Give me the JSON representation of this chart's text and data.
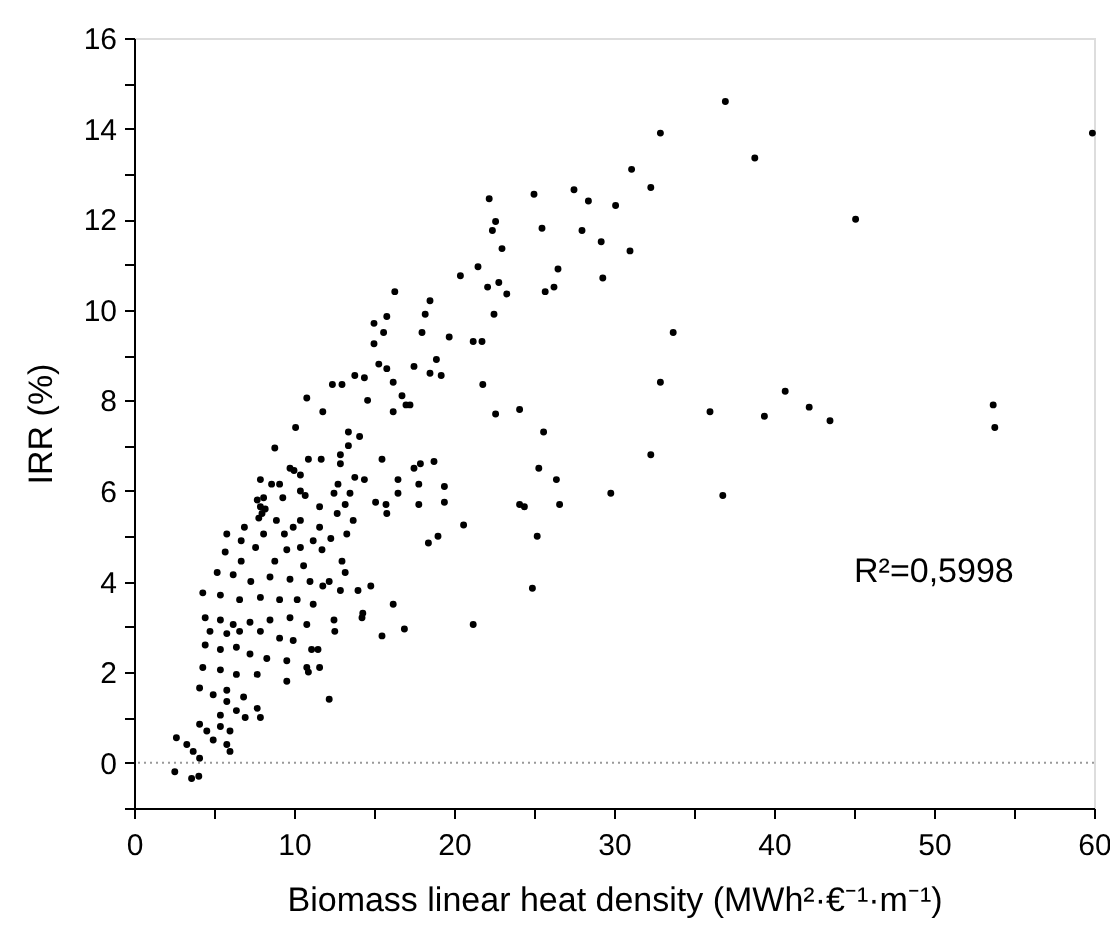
{
  "chart_data": {
    "type": "scatter",
    "xlabel": "Biomass linear heat density (MWh²·€⁻¹·m⁻¹)",
    "ylabel": "IRR (%)",
    "xlim": [
      0,
      60
    ],
    "ylim": [
      -1,
      16
    ],
    "xticks": [
      0,
      {
        "value": 5,
        "label": null
      },
      10,
      {
        "value": 15,
        "label": null
      },
      20,
      {
        "value": 25,
        "label": null
      },
      30,
      {
        "value": 35,
        "label": null
      },
      40,
      {
        "value": 45,
        "label": null
      },
      50,
      {
        "value": 55,
        "label": null
      },
      60
    ],
    "yticks": [
      {
        "value": -1,
        "label": null
      },
      0,
      {
        "value": 1,
        "label": null
      },
      2,
      {
        "value": 3,
        "label": null
      },
      4,
      {
        "value": 5,
        "label": null
      },
      6,
      {
        "value": 7,
        "label": null
      },
      8,
      {
        "value": 9,
        "label": null
      },
      10,
      {
        "value": 11,
        "label": null
      },
      12,
      {
        "value": 13,
        "label": null
      },
      14,
      {
        "value": 15,
        "label": null
      },
      16
    ],
    "grid": false,
    "legend": false,
    "marker": "circle",
    "annotations": [
      "R²=0,5998"
    ],
    "ref_lines": [
      {
        "axis": "y",
        "value": 0,
        "label": null,
        "color": "#999999",
        "line_style": "dotted"
      }
    ],
    "series": [
      {
        "color": "#000000",
        "x": [
          36.96,
          59.9,
          38.8,
          32.9,
          31.1,
          32.3,
          45.1,
          33.7,
          32.9,
          40.7,
          42.2,
          43.5,
          39.4,
          36.0,
          53.7,
          53.8,
          32.3,
          36.8,
          29.8,
          27.5,
          28.4,
          30.1,
          28.0,
          29.2,
          31.0,
          29.3,
          25.0,
          25.5,
          26.5,
          25.7,
          26.25,
          23.0,
          22.5,
          21.75,
          21.8,
          22.6,
          24.1,
          25.6,
          25.3,
          26.4,
          26.6,
          24.1,
          24.4,
          25.2,
          24.9,
          22.2,
          22.4,
          22.6,
          22.8,
          23.3,
          22.1,
          20.4,
          21.5,
          18.5,
          16.3,
          18.2,
          18.0,
          15.8,
          15.6,
          15.0,
          15.0,
          19.7,
          21.2,
          18.9,
          17.5,
          18.5,
          19.2,
          15.3,
          15.8,
          16.2,
          13.8,
          14.4,
          12.4,
          13.0,
          10.8,
          11.8,
          14.6,
          14.1,
          13.4,
          13.4,
          16.75,
          17.0,
          17.25,
          16.2,
          15.5,
          10.1,
          8.8,
          11.7,
          12.9,
          12.9,
          13.8,
          14.4,
          12.75,
          10.0,
          10.4,
          8.6,
          7.9,
          8.0,
          17.5,
          17.9,
          18.75,
          16.5,
          17.8,
          19.4,
          15.1,
          15.75,
          15.8,
          19.4,
          13.5,
          13.2,
          16.5,
          17.8,
          20.6,
          19.0,
          18.4,
          21.2,
          16.2,
          16.9,
          15.5,
          14.0,
          14.8,
          14.3,
          14.25,
          13.2,
          12.9,
          12.2,
          12.5,
          12.55,
          11.5,
          11.1,
          11.6,
          10.9,
          12.2,
          13.3,
          13.7,
          12.3,
          13.0,
          10.9,
          9.75,
          10.4,
          10.7,
          7.7,
          8.2,
          7.8,
          8.9,
          6.7,
          8.1,
          9.4,
          9.55,
          5.7,
          6.7,
          7.6,
          8.8,
          10.4,
          10.6,
          11.2,
          11.75,
          5.2,
          6.2,
          7.3,
          8.5,
          9.75,
          11.0,
          11.8,
          4.3,
          5.4,
          6.6,
          7.9,
          9.1,
          10.2,
          11.2,
          4.45,
          5.4,
          6.2,
          7.25,
          8.5,
          9.75,
          10.8,
          4.75,
          5.8,
          6.6,
          7.9,
          9.1,
          9.95,
          4.45,
          5.4,
          6.4,
          7.25,
          8.3,
          9.55,
          4.3,
          5.4,
          6.4,
          7.7,
          9.55,
          10.8,
          4.1,
          4.95,
          5.8,
          6.85,
          7.7,
          7.9,
          5.8,
          6.4,
          6.95,
          5.4,
          6.0,
          4.1,
          4.55,
          5.4,
          4.95,
          5.8,
          6.0,
          2.65,
          3.3,
          3.7,
          4.1,
          2.55,
          3.6,
          4.05,
          7.9,
          8.1,
          9.1,
          9.3,
          10.4,
          9.95,
          5.8,
          6.9,
          11.6,
          11.6,
          12.5,
          12.7
        ],
        "values": [
          14.6,
          13.9,
          13.35,
          13.9,
          13.1,
          12.7,
          12.0,
          9.5,
          8.4,
          8.2,
          7.85,
          7.55,
          7.65,
          7.75,
          7.9,
          7.4,
          6.8,
          5.9,
          5.95,
          12.65,
          12.4,
          12.3,
          11.75,
          11.5,
          11.3,
          10.7,
          12.55,
          11.8,
          10.9,
          10.4,
          10.5,
          11.35,
          9.9,
          9.3,
          8.35,
          7.7,
          7.8,
          7.3,
          6.5,
          6.25,
          5.7,
          5.7,
          5.65,
          5.0,
          3.85,
          12.45,
          11.75,
          11.95,
          10.6,
          10.35,
          10.5,
          10.75,
          10.95,
          10.2,
          10.4,
          9.9,
          9.5,
          9.85,
          9.5,
          9.7,
          9.25,
          9.4,
          9.3,
          8.9,
          8.75,
          8.6,
          8.55,
          8.8,
          8.7,
          8.4,
          8.55,
          8.5,
          8.35,
          8.35,
          8.05,
          7.75,
          8.0,
          7.2,
          7.3,
          7.0,
          8.1,
          7.9,
          7.9,
          7.75,
          6.7,
          7.4,
          6.95,
          6.7,
          6.8,
          6.6,
          6.3,
          6.25,
          6.15,
          6.45,
          6.35,
          6.15,
          5.65,
          5.5,
          6.5,
          6.6,
          6.65,
          6.25,
          6.15,
          6.1,
          5.75,
          5.7,
          5.5,
          5.75,
          5.95,
          5.7,
          5.95,
          5.7,
          5.25,
          5.0,
          4.85,
          3.05,
          3.5,
          2.95,
          2.8,
          3.8,
          3.9,
          3.3,
          3.2,
          4.2,
          3.8,
          4.0,
          3.15,
          2.9,
          2.5,
          2.5,
          2.1,
          2.0,
          1.4,
          5.05,
          5.35,
          4.95,
          4.45,
          6.7,
          6.5,
          6.0,
          5.9,
          5.8,
          5.6,
          5.4,
          5.35,
          4.9,
          5.05,
          5.05,
          4.7,
          4.65,
          4.45,
          4.75,
          4.45,
          4.75,
          4.35,
          4.9,
          4.7,
          4.2,
          4.15,
          4.0,
          4.1,
          4.05,
          4.0,
          3.9,
          3.75,
          3.7,
          3.6,
          3.65,
          3.6,
          3.6,
          3.5,
          3.2,
          3.15,
          3.05,
          3.1,
          3.15,
          3.2,
          3.05,
          2.9,
          2.85,
          2.9,
          2.9,
          2.75,
          2.7,
          2.6,
          2.5,
          2.55,
          2.4,
          2.3,
          2.25,
          2.1,
          2.05,
          1.95,
          1.95,
          1.8,
          2.1,
          1.65,
          1.5,
          1.6,
          1.45,
          1.2,
          1.0,
          1.35,
          1.15,
          1.0,
          1.05,
          0.7,
          0.85,
          0.7,
          0.8,
          0.5,
          0.4,
          0.25,
          0.55,
          0.4,
          0.25,
          0.1,
          -0.2,
          -0.35,
          -0.3,
          6.25,
          5.85,
          6.15,
          5.85,
          5.35,
          5.2,
          5.05,
          5.2,
          5.65,
          5.2,
          5.95,
          5.5
        ]
      }
    ]
  }
}
